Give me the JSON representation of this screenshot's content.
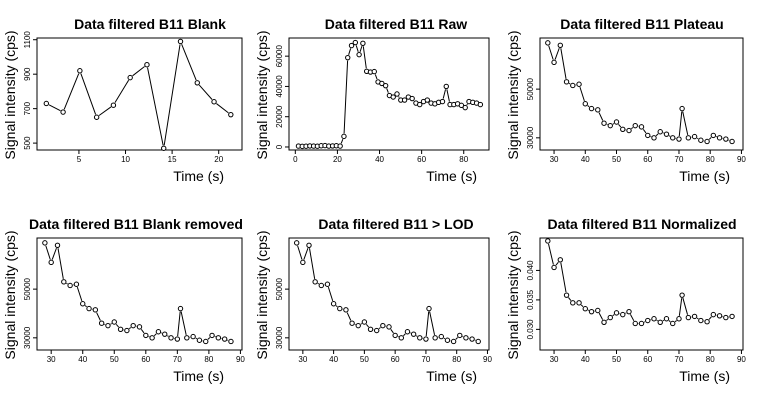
{
  "chart_data": [
    {
      "type": "line",
      "title": "Data filtered B11 Blank",
      "xlabel": "Time (s)",
      "ylabel": "Signal intensity (cps)",
      "xlim": [
        0.5,
        22.5
      ],
      "ylim": [
        460,
        1110
      ],
      "xticks": [
        5,
        10,
        15,
        20
      ],
      "yticks": [
        500,
        700,
        900,
        1100
      ],
      "x": [
        1.5,
        3.3,
        5.1,
        6.9,
        8.7,
        10.5,
        12.3,
        14.1,
        15.9,
        17.7,
        19.5,
        21.3
      ],
      "y": [
        730,
        680,
        920,
        650,
        720,
        880,
        955,
        470,
        1090,
        850,
        740,
        665
      ]
    },
    {
      "type": "line",
      "title": "Data filtered B11 Raw",
      "xlabel": "Time (s)",
      "ylabel": "Signal intensity (cps)",
      "xlim": [
        -3,
        92
      ],
      "ylim": [
        -2000,
        72000
      ],
      "xticks": [
        0,
        20,
        40,
        60,
        80
      ],
      "yticks": [
        0,
        20000,
        40000,
        60000
      ],
      "x": [
        1.5,
        3.3,
        5.1,
        6.9,
        8.7,
        10.5,
        12.3,
        14.1,
        15.9,
        17.7,
        19.5,
        21.3,
        23.1,
        24.9,
        26.7,
        28.5,
        30.3,
        32.1,
        33.9,
        35.7,
        37.5,
        39.3,
        41.1,
        42.9,
        44.7,
        46.5,
        48.3,
        50.1,
        51.9,
        53.7,
        55.5,
        57.3,
        59.1,
        60.9,
        62.7,
        64.5,
        66.3,
        68.1,
        69.9,
        71.7,
        73.5,
        75.3,
        77.1,
        78.9,
        80.7,
        82.5,
        84.3,
        86.1,
        87.9
      ],
      "y": [
        600,
        400,
        500,
        700,
        600,
        500,
        800,
        900,
        600,
        700,
        800,
        600,
        7000,
        59000,
        67000,
        69000,
        61000,
        68500,
        50000,
        49500,
        49800,
        43000,
        42000,
        40500,
        34000,
        33000,
        35000,
        31000,
        31000,
        33000,
        32000,
        29000,
        28000,
        30000,
        31000,
        29000,
        28500,
        29500,
        30000,
        40000,
        28000,
        28000,
        28500,
        27500,
        26000,
        30000,
        29500,
        29000,
        28000
      ]
    },
    {
      "type": "line",
      "title": "Data filtered B11 Plateau",
      "xlabel": "Time (s)",
      "ylabel": "Signal intensity (cps)",
      "xlim": [
        25.5,
        90.5
      ],
      "ylim": [
        25000,
        71000
      ],
      "xticks": [
        30,
        40,
        50,
        60,
        70,
        80,
        90
      ],
      "yticks": [
        30000,
        50000
      ],
      "x": [
        28,
        30,
        32,
        34,
        36,
        38,
        40,
        42,
        44,
        46,
        48,
        50,
        52,
        54,
        56,
        58,
        60,
        62,
        64,
        66,
        68,
        70,
        71,
        73,
        75,
        77,
        79,
        81,
        83,
        85,
        87
      ],
      "y": [
        69000,
        61000,
        68000,
        53000,
        51500,
        52000,
        44000,
        42000,
        41500,
        36000,
        35000,
        36500,
        33500,
        33000,
        35000,
        34500,
        31000,
        30000,
        32500,
        31500,
        30000,
        29500,
        42000,
        30000,
        30500,
        29000,
        28500,
        31000,
        30000,
        29500,
        28500
      ]
    },
    {
      "type": "line",
      "title": "Data filtered B11 Blank removed",
      "xlabel": "Time (s)",
      "ylabel": "Signal intensity (cps)",
      "xlim": [
        25.5,
        90.5
      ],
      "ylim": [
        25000,
        71000
      ],
      "xticks": [
        30,
        40,
        50,
        60,
        70,
        80,
        90
      ],
      "yticks": [
        30000,
        50000
      ],
      "x": [
        28,
        30,
        32,
        34,
        36,
        38,
        40,
        42,
        44,
        46,
        48,
        50,
        52,
        54,
        56,
        58,
        60,
        62,
        64,
        66,
        68,
        70,
        71,
        73,
        75,
        77,
        79,
        81,
        83,
        85,
        87
      ],
      "y": [
        69000,
        61000,
        68000,
        53000,
        51500,
        52000,
        44000,
        42000,
        41500,
        36000,
        35000,
        36500,
        33500,
        33000,
        35000,
        34500,
        31000,
        30000,
        32500,
        31500,
        30000,
        29500,
        42000,
        30000,
        30500,
        29000,
        28500,
        31000,
        30000,
        29500,
        28500
      ]
    },
    {
      "type": "line",
      "title": "Data filtered B11 > LOD",
      "xlabel": "Time (s)",
      "ylabel": "Signal intensity (cps)",
      "xlim": [
        25.5,
        90.5
      ],
      "ylim": [
        25000,
        71000
      ],
      "xticks": [
        30,
        40,
        50,
        60,
        70,
        80,
        90
      ],
      "yticks": [
        30000,
        50000
      ],
      "x": [
        28,
        30,
        32,
        34,
        36,
        38,
        40,
        42,
        44,
        46,
        48,
        50,
        52,
        54,
        56,
        58,
        60,
        62,
        64,
        66,
        68,
        70,
        71,
        73,
        75,
        77,
        79,
        81,
        83,
        85,
        87
      ],
      "y": [
        69000,
        61000,
        68000,
        53000,
        51500,
        52000,
        44000,
        42000,
        41500,
        36000,
        35000,
        36500,
        33500,
        33000,
        35000,
        34500,
        31000,
        30000,
        32500,
        31500,
        30000,
        29500,
        42000,
        30000,
        30500,
        29000,
        28500,
        31000,
        30000,
        29500,
        28500
      ]
    },
    {
      "type": "line",
      "title": "Data filtered B11 Normalized",
      "xlabel": "Time (s)",
      "ylabel": "Signal intensity (cps)",
      "xlim": [
        25.5,
        90.5
      ],
      "ylim": [
        0.0265,
        0.0455
      ],
      "xticks": [
        30,
        40,
        50,
        60,
        70,
        80,
        90
      ],
      "yticks": [
        0.03,
        0.035,
        0.04
      ],
      "ytick_labels": [
        "0.030",
        "0.035",
        "0.040"
      ],
      "x": [
        28,
        30,
        32,
        34,
        36,
        38,
        40,
        42,
        44,
        46,
        48,
        50,
        52,
        54,
        56,
        58,
        60,
        62,
        64,
        66,
        68,
        70,
        71,
        73,
        75,
        77,
        79,
        81,
        83,
        85,
        87
      ],
      "y": [
        0.045,
        0.0405,
        0.0418,
        0.0358,
        0.0345,
        0.0345,
        0.0335,
        0.033,
        0.0332,
        0.0312,
        0.032,
        0.0328,
        0.0325,
        0.033,
        0.031,
        0.031,
        0.0315,
        0.0318,
        0.0312,
        0.0318,
        0.031,
        0.0318,
        0.0358,
        0.032,
        0.0322,
        0.0315,
        0.0313,
        0.0325,
        0.0323,
        0.032,
        0.0322
      ]
    }
  ]
}
